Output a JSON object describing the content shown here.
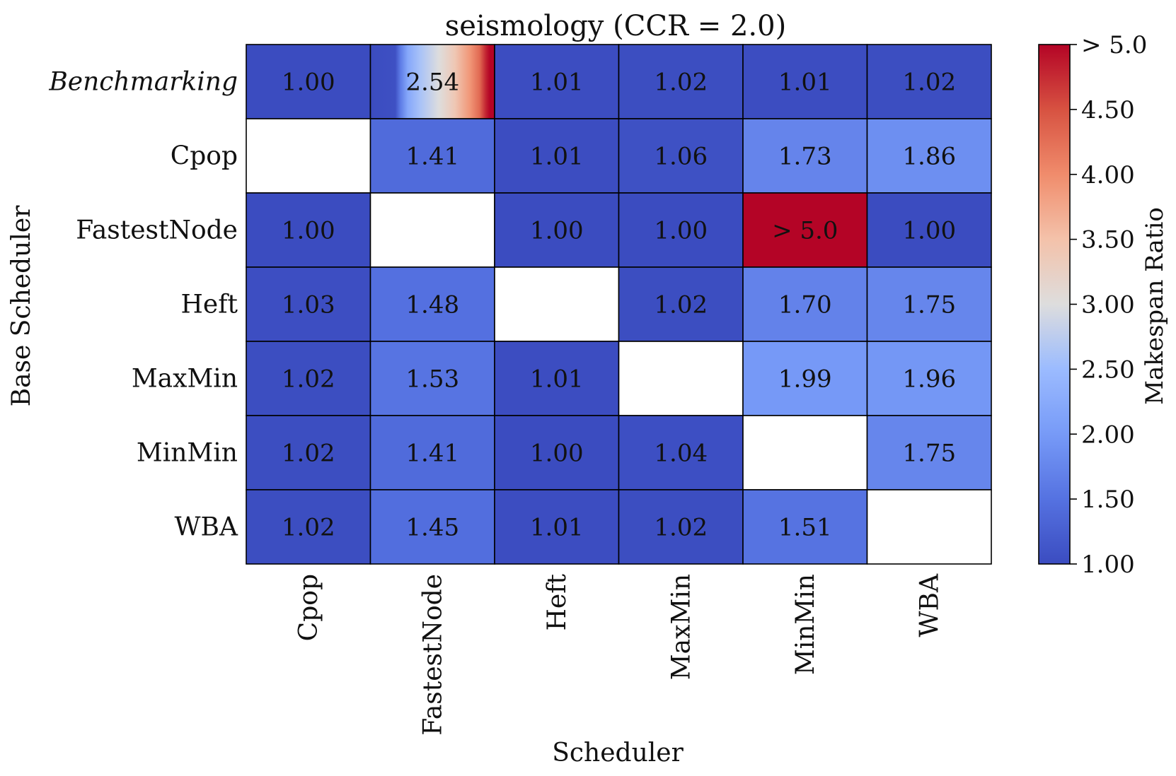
{
  "chart_data": {
    "type": "heatmap",
    "title": "seismology (CCR = 2.0)",
    "xlabel": "Scheduler",
    "ylabel": "Base Scheduler",
    "x_categories": [
      "Cpop",
      "FastestNode",
      "Heft",
      "MaxMin",
      "MinMin",
      "WBA"
    ],
    "y_categories": [
      "Benchmarking",
      "Cpop",
      "FastestNode",
      "Heft",
      "MaxMin",
      "MinMin",
      "WBA"
    ],
    "values": [
      [
        1.0,
        2.54,
        1.01,
        1.02,
        1.01,
        1.02
      ],
      [
        null,
        1.41,
        1.01,
        1.06,
        1.73,
        1.86
      ],
      [
        1.0,
        null,
        1.0,
        1.0,
        5.0,
        1.0
      ],
      [
        1.03,
        1.48,
        null,
        1.02,
        1.7,
        1.75
      ],
      [
        1.02,
        1.53,
        1.01,
        null,
        1.99,
        1.96
      ],
      [
        1.02,
        1.41,
        1.0,
        1.04,
        null,
        1.75
      ],
      [
        1.02,
        1.45,
        1.01,
        1.02,
        1.51,
        null
      ]
    ],
    "labels": [
      [
        "1.00",
        "2.54",
        "1.01",
        "1.02",
        "1.01",
        "1.02"
      ],
      [
        "",
        "1.41",
        "1.01",
        "1.06",
        "1.73",
        "1.86"
      ],
      [
        "1.00",
        "",
        "1.00",
        "1.00",
        "> 5.0",
        "1.00"
      ],
      [
        "1.03",
        "1.48",
        "",
        "1.02",
        "1.70",
        "1.75"
      ],
      [
        "1.02",
        "1.53",
        "1.01",
        "",
        "1.99",
        "1.96"
      ],
      [
        "1.02",
        "1.41",
        "1.00",
        "1.04",
        "",
        "1.75"
      ],
      [
        "1.02",
        "1.45",
        "1.01",
        "1.02",
        "1.51",
        ""
      ]
    ],
    "benchmark_row_gradient_cell": {
      "row": 0,
      "col": 1
    },
    "colorbar": {
      "label": "Makespan Ratio",
      "range": [
        1.0,
        5.0
      ],
      "colormap": "coolwarm",
      "ticks": [
        1.0,
        1.5,
        2.0,
        2.5,
        3.0,
        3.5,
        4.0,
        4.5,
        5.0
      ],
      "tick_labels": [
        "1.00",
        "1.50",
        "2.00",
        "2.50",
        "3.00",
        "3.50",
        "4.00",
        "4.50",
        "> 5.0"
      ]
    },
    "colors": {
      "empty_cell": "#ffffff",
      "cell_border": "#000000"
    }
  }
}
